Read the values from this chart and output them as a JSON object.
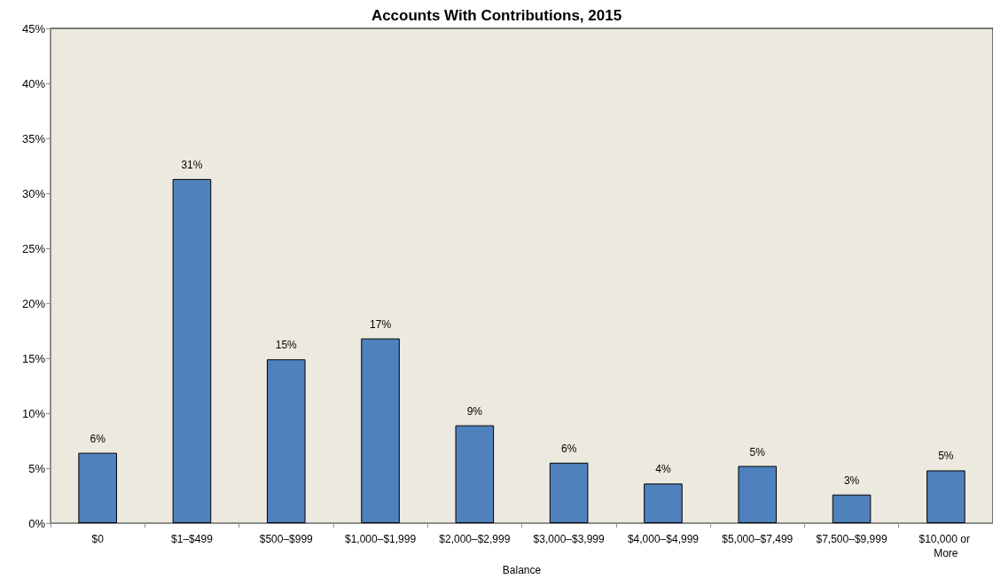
{
  "chart_data": {
    "type": "bar",
    "title": "Accounts With Contributions, 2015",
    "xlabel": "Balance",
    "categories": [
      "$0",
      "$1–$499",
      "$500–$999",
      "$1,000–$1,999",
      "$2,000–$2,999",
      "$3,000–$3,999",
      "$4,000–$4,999",
      "$5,000–$7,499",
      "$7,500–$9,999",
      "$10,000 or More"
    ],
    "values": [
      6.4,
      31.3,
      14.9,
      16.8,
      8.9,
      5.5,
      3.6,
      5.2,
      2.6,
      4.8
    ],
    "value_labels": [
      "6%",
      "31%",
      "15%",
      "17%",
      "9%",
      "6%",
      "4%",
      "5%",
      "3%",
      "5%"
    ],
    "color": "#4f81bd",
    "ylim": [
      0,
      45
    ],
    "yticks": [
      {
        "value": 0,
        "label": "0%"
      },
      {
        "value": 5,
        "label": "5%"
      },
      {
        "value": 10,
        "label": "10%"
      },
      {
        "value": 15,
        "label": "15%"
      },
      {
        "value": 20,
        "label": "20%"
      },
      {
        "value": 25,
        "label": "25%"
      },
      {
        "value": 30,
        "label": "30%"
      },
      {
        "value": 35,
        "label": "35%"
      },
      {
        "value": 40,
        "label": "40%"
      },
      {
        "value": 45,
        "label": "45%"
      }
    ]
  }
}
